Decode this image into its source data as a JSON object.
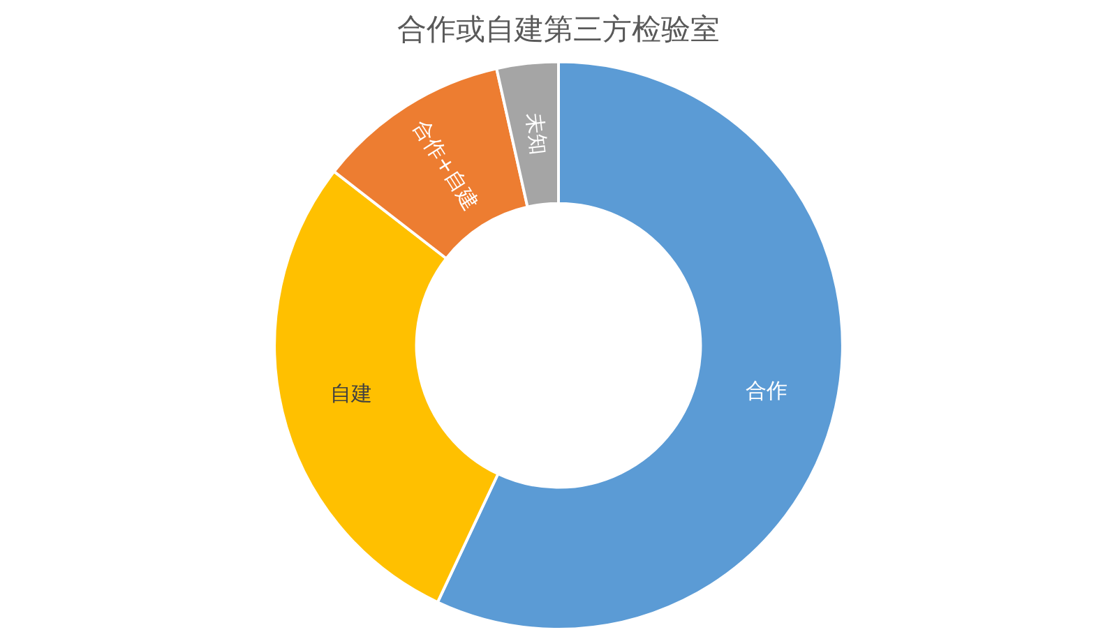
{
  "chart_data": {
    "type": "donut",
    "title": "合作或自建第三方检验室",
    "categories": [
      "合作",
      "自建",
      "合作+自建",
      "未知"
    ],
    "values": [
      57,
      28.5,
      11,
      3.5
    ],
    "colors": [
      "#5b9bd5",
      "#ffc000",
      "#ed7d31",
      "#a5a5a5"
    ],
    "legend": false
  }
}
